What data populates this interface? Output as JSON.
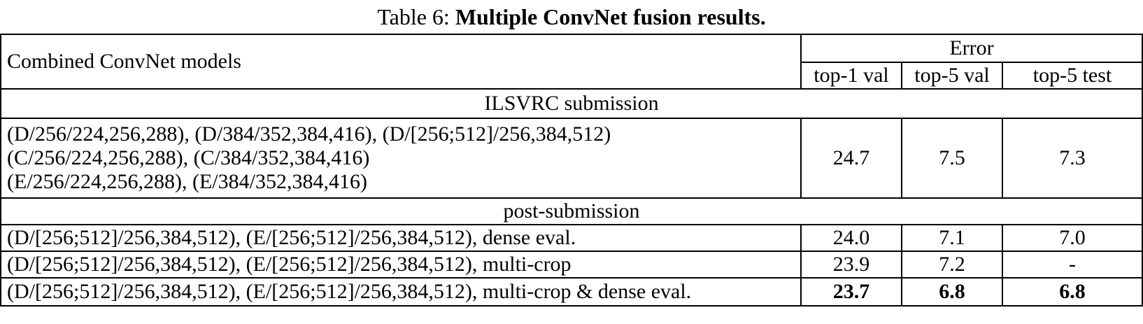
{
  "caption": {
    "prefix": "Table 6:",
    "title": "Multiple ConvNet fusion results."
  },
  "header": {
    "models_label": "Combined ConvNet models",
    "error_label": "Error",
    "columns": [
      "top-1 val",
      "top-5 val",
      "top-5 test"
    ]
  },
  "sections": [
    {
      "label": "ILSVRC submission",
      "rows": [
        {
          "model_lines": [
            "(D/256/224,256,288), (D/384/352,384,416), (D/[256;512]/256,384,512)",
            "(C/256/224,256,288), (C/384/352,384,416)",
            "(E/256/224,256,288), (E/384/352,384,416)"
          ],
          "values": [
            "24.7",
            "7.5",
            "7.3"
          ]
        }
      ]
    },
    {
      "label": "post-submission",
      "rows": [
        {
          "model_lines": [
            "(D/[256;512]/256,384,512), (E/[256;512]/256,384,512), dense eval."
          ],
          "values": [
            "24.0",
            "7.1",
            "7.0"
          ]
        },
        {
          "model_lines": [
            "(D/[256;512]/256,384,512), (E/[256;512]/256,384,512), multi-crop"
          ],
          "values": [
            "23.9",
            "7.2",
            "-"
          ]
        },
        {
          "model_lines": [
            "(D/[256;512]/256,384,512), (E/[256;512]/256,384,512), multi-crop & dense eval."
          ],
          "values": [
            "23.7",
            "6.8",
            "6.8"
          ]
        }
      ]
    }
  ]
}
